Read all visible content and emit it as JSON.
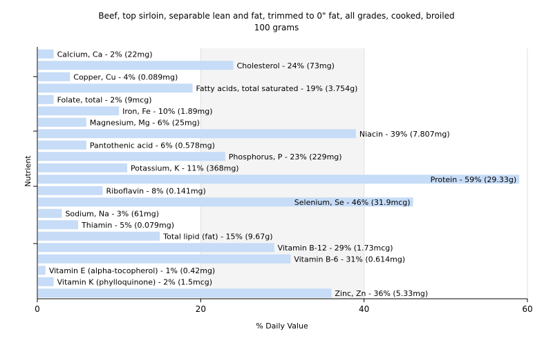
{
  "chart_data": {
    "type": "bar",
    "orientation": "horizontal",
    "title": "Beef, top sirloin, separable lean and fat, trimmed to 0\" fat, all grades, cooked, broiled",
    "subtitle": "100 grams",
    "xlabel": "% Daily Value",
    "ylabel": "Nutrient",
    "xlim": [
      0,
      60
    ],
    "xticks": [
      "0",
      "20",
      "40",
      "60"
    ],
    "grid": true,
    "colors": {
      "bar": "#c6dcf7",
      "grid": "#e0e0e0",
      "axis": "#000000",
      "band": "#f4f4f4"
    },
    "categories": [
      "Calcium, Ca",
      "Cholesterol",
      "Copper, Cu",
      "Fatty acids, total saturated",
      "Folate, total",
      "Iron, Fe",
      "Magnesium, Mg",
      "Niacin",
      "Pantothenic acid",
      "Phosphorus, P",
      "Potassium, K",
      "Protein",
      "Riboflavin",
      "Selenium, Se",
      "Sodium, Na",
      "Thiamin",
      "Total lipid (fat)",
      "Vitamin B-12",
      "Vitamin B-6",
      "Vitamin E (alpha-tocopherol)",
      "Vitamin K (phylloquinone)",
      "Zinc, Zn"
    ],
    "values": [
      2,
      24,
      4,
      19,
      2,
      10,
      6,
      39,
      6,
      23,
      11,
      59,
      8,
      46,
      3,
      5,
      15,
      29,
      31,
      1,
      2,
      36
    ],
    "labels": [
      "Calcium, Ca - 2% (22mg)",
      "Cholesterol - 24% (73mg)",
      "Copper, Cu - 4% (0.089mg)",
      "Fatty acids, total saturated - 19% (3.754g)",
      "Folate, total - 2% (9mcg)",
      "Iron, Fe - 10% (1.89mg)",
      "Magnesium, Mg - 6% (25mg)",
      "Niacin - 39% (7.807mg)",
      "Pantothenic acid - 6% (0.578mg)",
      "Phosphorus, P - 23% (229mg)",
      "Potassium, K - 11% (368mg)",
      "Protein - 59% (29.33g)",
      "Riboflavin - 8% (0.141mg)",
      "Selenium, Se - 46% (31.9mcg)",
      "Sodium, Na - 3% (61mg)",
      "Thiamin - 5% (0.079mg)",
      "Total lipid (fat) - 15% (9.67g)",
      "Vitamin B-12 - 29% (1.73mcg)",
      "Vitamin B-6 - 31% (0.614mg)",
      "Vitamin E (alpha-tocopherol) - 1% (0.42mg)",
      "Vitamin K (phylloquinone) - 2% (1.5mcg)",
      "Zinc, Zn - 36% (5.33mg)"
    ]
  }
}
